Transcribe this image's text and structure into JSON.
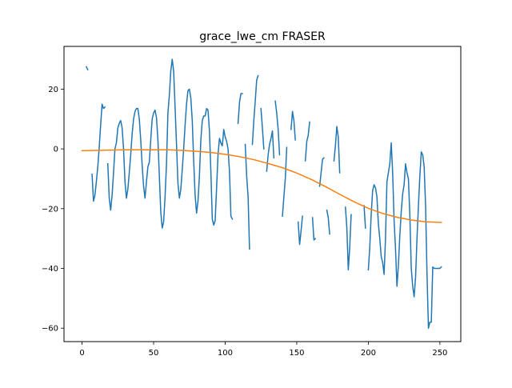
{
  "chart_data": {
    "type": "line",
    "title": "grace_lwe_cm FRASER",
    "xlabel": "",
    "ylabel": "",
    "xlim": [
      -12.6,
      264.6
    ],
    "ylim": [
      -64.5,
      34.3
    ],
    "xticks": [
      0,
      50,
      100,
      150,
      200,
      250
    ],
    "xtick_labels": [
      "0",
      "50",
      "100",
      "150",
      "200",
      "250"
    ],
    "yticks": [
      -60,
      -40,
      -20,
      0,
      20
    ],
    "ytick_labels": [
      "−60",
      "−40",
      "−20",
      "0",
      "20"
    ],
    "grid": false,
    "legend": null,
    "series": [
      {
        "color": "#1f77b4",
        "segments": [
          {
            "x": [
              3,
              4
            ],
            "y": [
              27.5,
              26.5
            ]
          },
          {
            "x": [
              7,
              8,
              9,
              10,
              11,
              12,
              13,
              14,
              15,
              16
            ],
            "y": [
              -8.5,
              -17.5,
              -15.5,
              -11,
              -6,
              0.5,
              8,
              15,
              13.5,
              14
            ]
          },
          {
            "x": [
              18,
              19,
              20,
              21,
              22,
              23,
              24,
              25,
              26,
              27,
              28,
              29,
              30,
              31,
              32,
              33,
              34,
              35,
              36,
              37,
              38,
              39,
              40,
              41,
              42,
              43,
              44,
              45,
              46,
              47,
              48,
              49,
              50,
              51,
              52,
              53,
              54,
              55,
              56,
              57,
              58,
              59,
              60,
              61,
              62,
              63,
              64,
              65,
              66,
              67,
              68,
              69,
              70,
              71,
              72,
              73,
              74,
              75,
              76,
              77,
              78,
              79,
              80,
              81,
              82,
              83,
              84,
              85,
              86,
              87,
              88,
              89,
              90,
              91,
              92,
              93,
              94,
              95,
              96,
              97,
              98,
              99,
              100,
              101,
              102,
              103,
              104,
              105
            ],
            "y": [
              -5,
              -16.5,
              -20.5,
              -15.5,
              -8,
              0,
              2,
              7,
              8.5,
              9.5,
              7,
              0,
              -11,
              -16.5,
              -13.5,
              -8,
              -2,
              5,
              10,
              12.5,
              13.5,
              13.5,
              10,
              3,
              -5.5,
              -12.5,
              -16.5,
              -11,
              -6,
              -4.5,
              3,
              10,
              12,
              13,
              10.5,
              3,
              -9,
              -21,
              -26.5,
              -24.5,
              -16,
              -5,
              12,
              18,
              26,
              30,
              26,
              14,
              1.5,
              -11.5,
              -16.5,
              -13.5,
              -7,
              0,
              8,
              15,
              19.5,
              20,
              17,
              9.5,
              -4,
              -15.5,
              -21.5,
              -17.5,
              -9,
              3,
              9.5,
              11,
              11,
              13.5,
              13,
              6,
              -7.5,
              -23.5,
              -25.5,
              -24,
              -13,
              -2,
              3.5,
              2,
              1,
              6.5,
              4,
              2.5,
              0,
              -7.5,
              -22.5,
              -23.5
            ]
          },
          {
            "x": [
              109,
              110,
              111,
              112
            ],
            "y": [
              8.5,
              15.5,
              18.5,
              18.5
            ]
          },
          {
            "x": [
              114,
              115,
              116,
              117
            ],
            "y": [
              1.5,
              -9,
              -16,
              -33.5
            ]
          },
          {
            "x": [
              119,
              120,
              121,
              122,
              123
            ],
            "y": [
              1.5,
              9.5,
              16,
              23,
              24.5
            ]
          },
          {
            "x": [
              125,
              126,
              127
            ],
            "y": [
              13.5,
              7,
              0
            ]
          },
          {
            "x": [
              129,
              130,
              131,
              132,
              133,
              134
            ],
            "y": [
              -7.5,
              -2,
              1.5,
              3.5,
              6,
              -3
            ]
          },
          {
            "x": [
              135,
              136,
              137,
              138
            ],
            "y": [
              16,
              12,
              6.5,
              -2
            ]
          },
          {
            "x": [
              140,
              141,
              142,
              143
            ],
            "y": [
              -22.5,
              -16,
              -10,
              0.5
            ]
          },
          {
            "x": [
              146,
              147,
              148,
              149
            ],
            "y": [
              6.5,
              12.5,
              9.5,
              3
            ]
          },
          {
            "x": [
              151,
              152,
              153,
              154
            ],
            "y": [
              -24.5,
              -32,
              -27.5,
              -22.5
            ]
          },
          {
            "x": [
              156,
              157,
              158,
              159
            ],
            "y": [
              -4,
              2.5,
              4.5,
              9
            ]
          },
          {
            "x": [
              161,
              162,
              163
            ],
            "y": [
              -23,
              -30.5,
              -30
            ]
          },
          {
            "x": [
              166,
              167,
              168,
              169
            ],
            "y": [
              -12.5,
              -8,
              -3.5,
              -3
            ]
          },
          {
            "x": [
              171,
              172,
              173
            ],
            "y": [
              -20.5,
              -23,
              -28.5
            ]
          },
          {
            "x": [
              176,
              177,
              178,
              179,
              180
            ],
            "y": [
              -4,
              1,
              7.5,
              4,
              -8
            ]
          },
          {
            "x": [
              184,
              185,
              186,
              187,
              188
            ],
            "y": [
              -19.5,
              -26.5,
              -40.5,
              -33,
              -22
            ]
          },
          {
            "x": [
              197,
              198
            ],
            "y": [
              -19,
              -26.5
            ]
          },
          {
            "x": [
              200,
              201,
              202,
              203,
              204,
              205,
              206,
              207,
              208,
              209,
              210,
              211,
              212,
              213,
              214,
              215,
              216,
              217,
              218,
              219,
              220,
              221,
              222,
              223,
              224,
              225,
              226,
              227,
              228,
              229,
              230,
              231,
              232,
              233,
              234,
              235,
              236,
              237,
              238,
              239,
              240,
              241,
              242,
              243,
              244,
              245,
              246,
              247,
              248,
              249,
              250,
              251
            ],
            "y": [
              -40.5,
              -33,
              -22,
              -14,
              -12,
              -13,
              -16,
              -25,
              -30,
              -36,
              -38,
              -42,
              -30,
              -11,
              -8,
              -5,
              2,
              -8,
              -24,
              -33.5,
              -46,
              -39,
              -29,
              -21,
              -15,
              -12,
              -5,
              -8,
              -10,
              -22,
              -40,
              -46,
              -49.5,
              -43,
              -30,
              -19,
              -9,
              -1,
              -2,
              -6,
              -19,
              -42,
              -60,
              -58,
              -58,
              -39.5,
              -40,
              -40,
              -40,
              -40,
              -40,
              -39.5
            ]
          }
        ]
      },
      {
        "color": "#ff7f0e",
        "x": [
          0,
          10,
          20,
          30,
          40,
          50,
          60,
          70,
          80,
          90,
          100,
          110,
          120,
          130,
          140,
          150,
          160,
          170,
          180,
          190,
          200,
          210,
          220,
          230,
          240,
          250,
          251
        ],
        "y": [
          -0.6,
          -0.5,
          -0.4,
          -0.3,
          -0.3,
          -0.3,
          -0.3,
          -0.5,
          -0.8,
          -1.2,
          -1.8,
          -2.6,
          -3.6,
          -4.9,
          -6.3,
          -8.1,
          -10.2,
          -12.6,
          -15.2,
          -17.7,
          -19.9,
          -21.6,
          -22.9,
          -23.8,
          -24.4,
          -24.6,
          -24.6
        ]
      }
    ]
  }
}
